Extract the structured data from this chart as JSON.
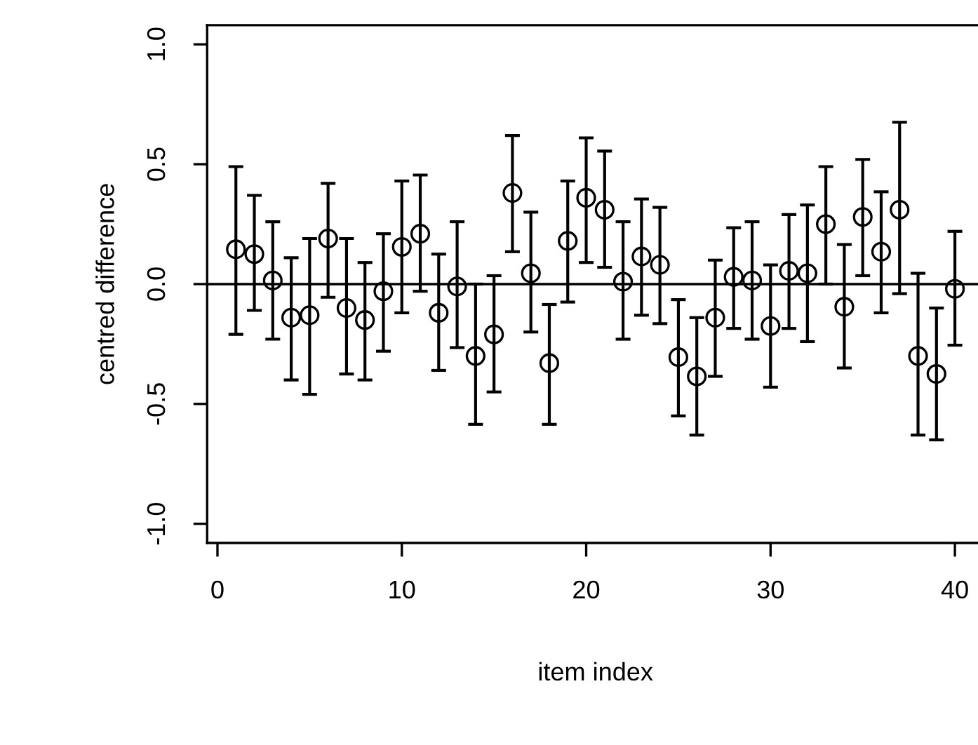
{
  "chart_data": {
    "type": "scatter",
    "xlabel": "item index",
    "ylabel": "centred difference",
    "x": [
      1,
      2,
      3,
      4,
      5,
      6,
      7,
      8,
      9,
      10,
      11,
      12,
      13,
      14,
      15,
      16,
      17,
      18,
      19,
      20,
      21,
      22,
      23,
      24,
      25,
      26,
      27,
      28,
      29,
      30,
      31,
      32,
      33,
      34,
      35,
      36,
      37,
      38,
      39,
      40
    ],
    "series": [
      {
        "color": "#000000",
        "values": [
          0.145,
          0.125,
          0.015,
          -0.14,
          -0.13,
          0.19,
          -0.1,
          -0.15,
          -0.03,
          0.155,
          0.21,
          -0.12,
          -0.01,
          -0.3,
          -0.21,
          0.38,
          0.045,
          -0.33,
          0.18,
          0.36,
          0.31,
          0.01,
          0.115,
          0.08,
          -0.305,
          -0.385,
          -0.14,
          0.03,
          0.015,
          -0.175,
          0.055,
          0.045,
          0.25,
          -0.095,
          0.28,
          0.135,
          0.31,
          -0.3,
          -0.375,
          -0.02
        ],
        "errors": [
          [
            -0.21,
            0.49
          ],
          [
            -0.11,
            0.37
          ],
          [
            -0.23,
            0.26
          ],
          [
            -0.4,
            0.11
          ],
          [
            -0.46,
            0.19
          ],
          [
            -0.055,
            0.42
          ],
          [
            -0.375,
            0.19
          ],
          [
            -0.4,
            0.09
          ],
          [
            -0.28,
            0.21
          ],
          [
            -0.12,
            0.43
          ],
          [
            -0.03,
            0.455
          ],
          [
            -0.36,
            0.125
          ],
          [
            -0.265,
            0.26
          ],
          [
            -0.585,
            0.0
          ],
          [
            -0.45,
            0.035
          ],
          [
            0.135,
            0.62
          ],
          [
            -0.2,
            0.3
          ],
          [
            -0.585,
            -0.085
          ],
          [
            -0.075,
            0.43
          ],
          [
            0.09,
            0.61
          ],
          [
            0.07,
            0.555
          ],
          [
            -0.23,
            0.26
          ],
          [
            -0.13,
            0.355
          ],
          [
            -0.165,
            0.32
          ],
          [
            -0.55,
            -0.065
          ],
          [
            -0.63,
            -0.14
          ],
          [
            -0.385,
            0.1
          ],
          [
            -0.185,
            0.235
          ],
          [
            -0.23,
            0.26
          ],
          [
            -0.43,
            0.08
          ],
          [
            -0.185,
            0.29
          ],
          [
            -0.24,
            0.33
          ],
          [
            0.0,
            0.49
          ],
          [
            -0.35,
            0.165
          ],
          [
            0.035,
            0.52
          ],
          [
            -0.12,
            0.385
          ],
          [
            -0.04,
            0.675
          ],
          [
            -0.63,
            0.045
          ],
          [
            -0.65,
            -0.1
          ],
          [
            -0.255,
            0.22
          ]
        ]
      }
    ],
    "marker": "circle",
    "grid": false,
    "legend": false,
    "xlim": [
      -0.56,
      41.56
    ],
    "xticks": [
      0,
      10,
      20,
      30,
      40
    ],
    "ylim": [
      -1.08,
      1.08
    ],
    "yticks": [
      {
        "value": -1,
        "label": "-1.0"
      },
      {
        "value": -0.5,
        "label": "-0.5"
      },
      {
        "value": 0,
        "label": "0.0"
      },
      {
        "value": 0.5,
        "label": "0.5"
      },
      {
        "value": 1,
        "label": "1.0"
      }
    ],
    "ref_lines": [
      {
        "axis": "y",
        "value": 0,
        "color": "#000000"
      }
    ]
  }
}
